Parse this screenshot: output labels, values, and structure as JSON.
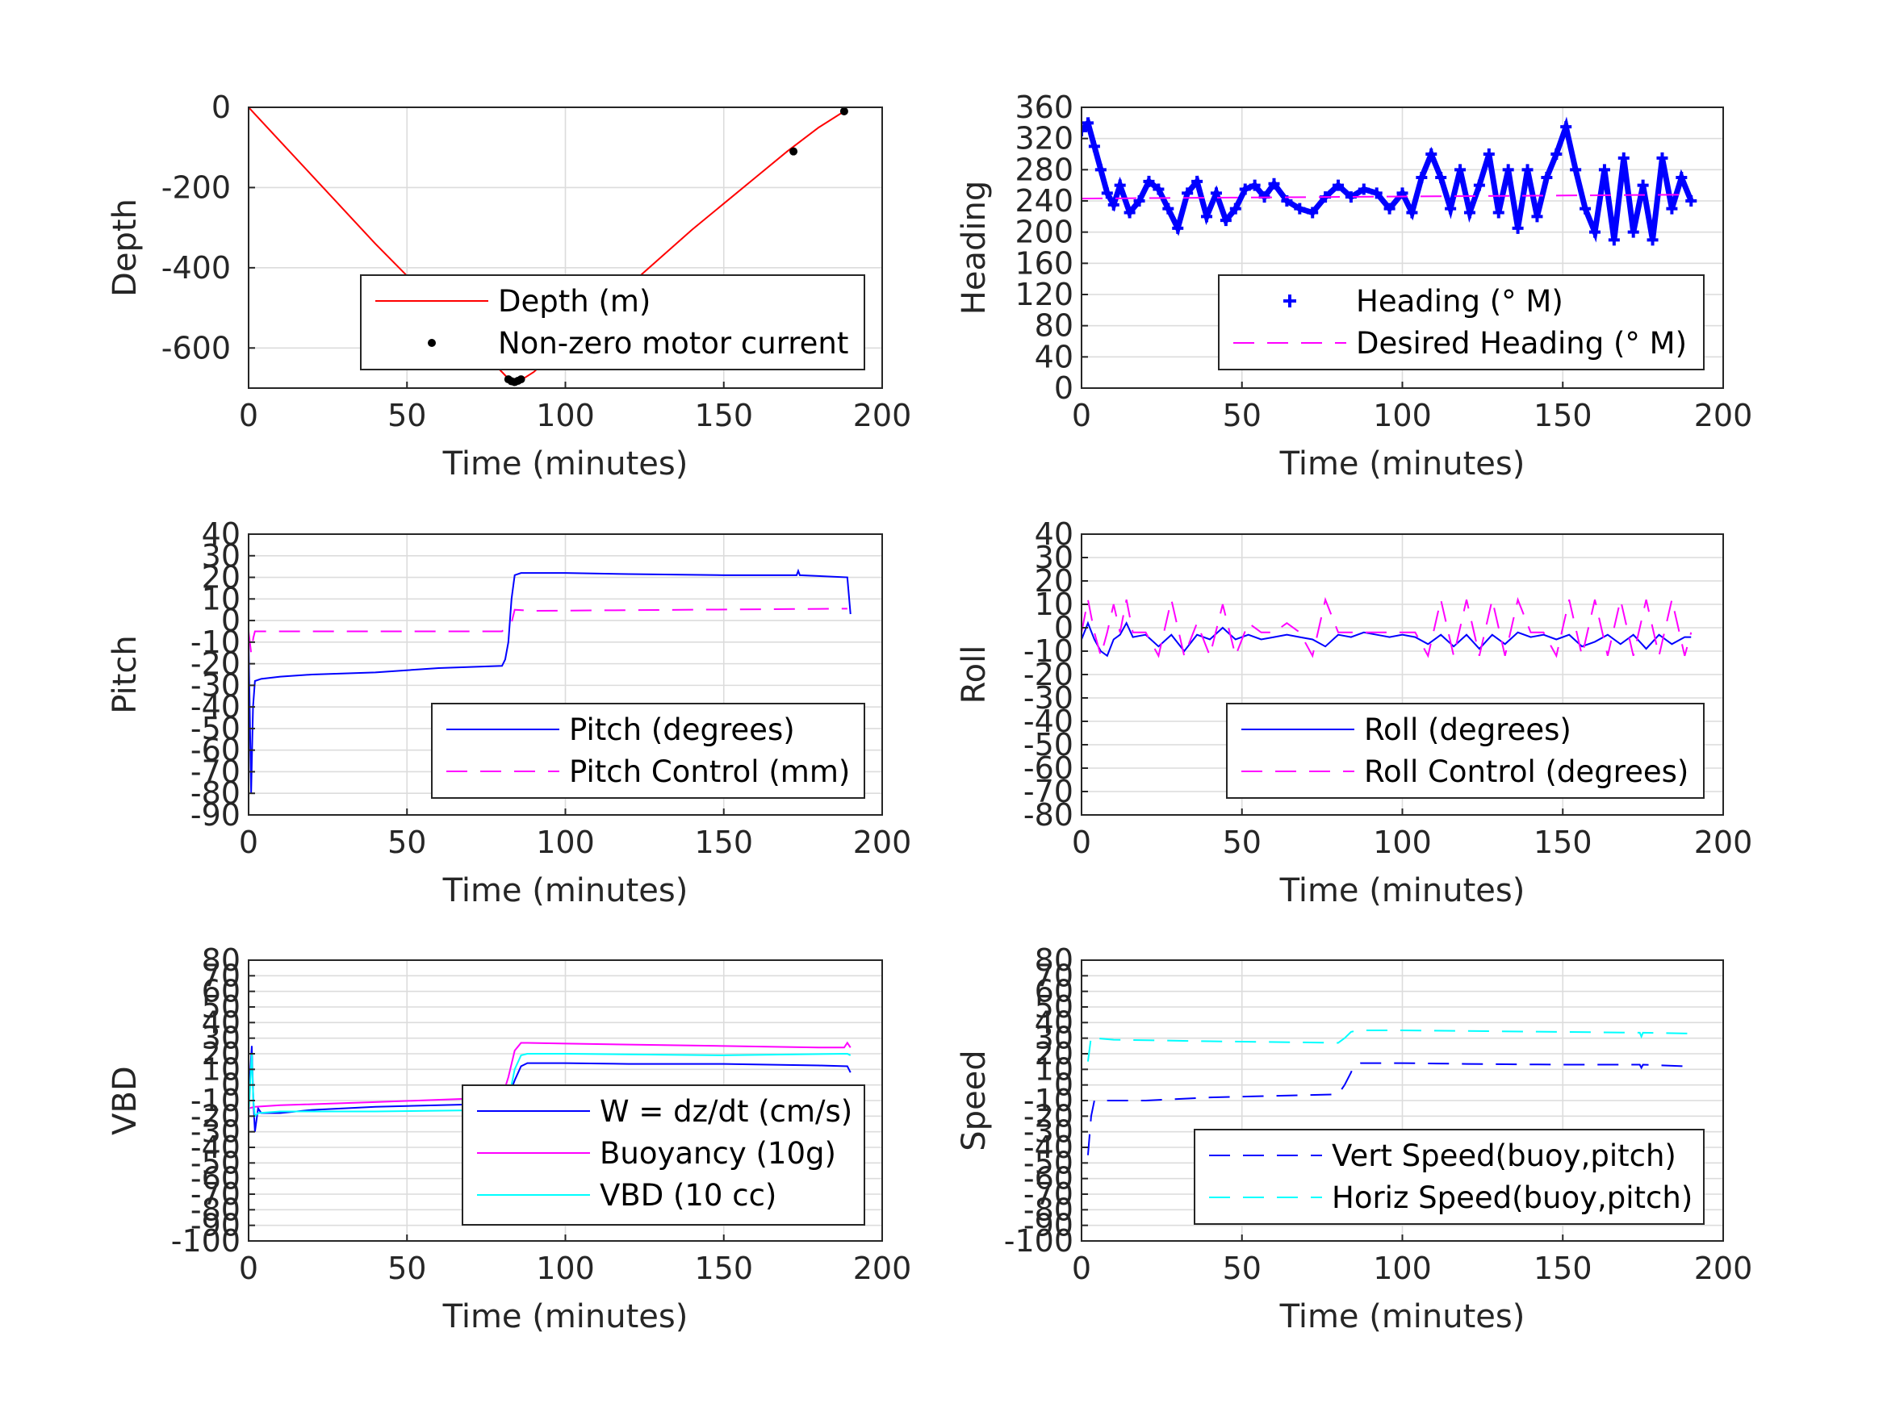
{
  "colors": {
    "red": "#ff0000",
    "blue": "#0000ff",
    "magenta": "#ff00ff",
    "cyan": "#00ffff",
    "black": "#000000"
  },
  "chart_data": [
    {
      "id": "depth",
      "type": "line",
      "xlabel": "Time (minutes)",
      "ylabel": "Depth",
      "xlim": [
        0,
        200
      ],
      "ylim": [
        -700,
        0
      ],
      "xticks": [
        0,
        50,
        100,
        150,
        200
      ],
      "yticks": [
        0,
        -200,
        -400,
        -600
      ],
      "grid": true,
      "legend_position": "lower-right",
      "series": [
        {
          "name": "Depth (m)",
          "style": "line",
          "color": "#ff0000",
          "x": [
            0,
            10,
            20,
            30,
            40,
            50,
            60,
            70,
            80,
            83,
            86,
            90,
            100,
            110,
            120,
            130,
            140,
            150,
            160,
            170,
            180,
            189
          ],
          "y": [
            0,
            -85,
            -170,
            -255,
            -340,
            -420,
            -500,
            -580,
            -660,
            -685,
            -680,
            -660,
            -590,
            -520,
            -445,
            -375,
            -305,
            -240,
            -175,
            -110,
            -50,
            -5
          ]
        },
        {
          "name": "Non-zero motor current",
          "style": "dots",
          "color": "#000000",
          "x": [
            82,
            83,
            84,
            85,
            86,
            172,
            188
          ],
          "y": [
            -678,
            -683,
            -685,
            -682,
            -678,
            -110,
            -10
          ]
        }
      ]
    },
    {
      "id": "heading",
      "type": "line",
      "xlabel": "Time (minutes)",
      "ylabel": "Heading",
      "xlim": [
        0,
        200
      ],
      "ylim": [
        0,
        360
      ],
      "xticks": [
        0,
        50,
        100,
        150,
        200
      ],
      "yticks": [
        0,
        40,
        80,
        120,
        160,
        200,
        240,
        280,
        320,
        360
      ],
      "grid": true,
      "legend_position": "lower-right",
      "series": [
        {
          "name": "Heading (° M)",
          "style": "markers",
          "color": "#0000ff",
          "x": [
            0,
            2,
            4,
            6,
            8,
            10,
            12,
            15,
            18,
            21,
            24,
            27,
            30,
            33,
            36,
            39,
            42,
            45,
            48,
            51,
            54,
            57,
            60,
            64,
            68,
            72,
            76,
            80,
            84,
            88,
            92,
            96,
            100,
            103,
            106,
            109,
            112,
            115,
            118,
            121,
            124,
            127,
            130,
            133,
            136,
            139,
            142,
            145,
            148,
            151,
            154,
            157,
            160,
            163,
            166,
            169,
            172,
            175,
            178,
            181,
            184,
            187,
            190
          ],
          "y": [
            330,
            340,
            310,
            280,
            250,
            235,
            260,
            225,
            240,
            265,
            255,
            230,
            205,
            250,
            265,
            220,
            250,
            215,
            230,
            255,
            260,
            245,
            262,
            240,
            230,
            225,
            245,
            260,
            245,
            255,
            250,
            230,
            250,
            225,
            270,
            300,
            270,
            230,
            280,
            225,
            260,
            300,
            225,
            280,
            205,
            280,
            220,
            270,
            300,
            335,
            280,
            230,
            200,
            280,
            190,
            295,
            200,
            260,
            190,
            295,
            230,
            270,
            240
          ]
        },
        {
          "name": "Desired Heading (° M)",
          "style": "dashed",
          "color": "#ff00ff",
          "x": [
            0,
            190
          ],
          "y": [
            243,
            248
          ]
        }
      ]
    },
    {
      "id": "pitch",
      "type": "line",
      "xlabel": "Time (minutes)",
      "ylabel": "Pitch",
      "xlim": [
        0,
        200
      ],
      "ylim": [
        -90,
        40
      ],
      "xticks": [
        0,
        50,
        100,
        150,
        200
      ],
      "yticks": [
        40,
        30,
        20,
        10,
        0,
        -10,
        -20,
        -30,
        -40,
        -50,
        -60,
        -70,
        -80,
        -90
      ],
      "grid": true,
      "legend_position": "lower-right",
      "series": [
        {
          "name": "Pitch (degrees)",
          "style": "line",
          "color": "#0000ff",
          "x": [
            0,
            0.8,
            1.4,
            2,
            4,
            10,
            20,
            40,
            60,
            80,
            81,
            82,
            83,
            84,
            86,
            100,
            120,
            150,
            173,
            173.5,
            174,
            189,
            190
          ],
          "y": [
            -10,
            -80,
            -40,
            -28,
            -27,
            -26,
            -25,
            -24,
            -22,
            -21,
            -18,
            -10,
            10,
            21,
            22,
            22,
            21.5,
            21,
            21,
            23,
            21,
            20,
            3
          ]
        },
        {
          "name": "Pitch Control (mm)",
          "style": "dashed",
          "color": "#ff00ff",
          "x": [
            0,
            0.8,
            1.5,
            2,
            80,
            82,
            83,
            84,
            90,
            189
          ],
          "y": [
            -5,
            -15,
            -8,
            -5,
            -5,
            -2,
            -1,
            5,
            4.5,
            5.5
          ]
        }
      ]
    },
    {
      "id": "roll",
      "type": "line",
      "xlabel": "Time (minutes)",
      "ylabel": "Roll",
      "xlim": [
        0,
        200
      ],
      "ylim": [
        -80,
        40
      ],
      "xticks": [
        0,
        50,
        100,
        150,
        200
      ],
      "yticks": [
        40,
        30,
        20,
        10,
        0,
        -10,
        -20,
        -30,
        -40,
        -50,
        -60,
        -70,
        -80
      ],
      "grid": true,
      "legend_position": "lower-right",
      "series": [
        {
          "name": "Roll (degrees)",
          "style": "line",
          "color": "#0000ff",
          "x": [
            0,
            2,
            4,
            6,
            8,
            10,
            12,
            14,
            16,
            20,
            24,
            28,
            32,
            36,
            40,
            44,
            48,
            52,
            56,
            60,
            64,
            68,
            72,
            76,
            80,
            84,
            88,
            92,
            96,
            100,
            104,
            108,
            112,
            116,
            120,
            124,
            128,
            132,
            136,
            140,
            144,
            148,
            152,
            156,
            160,
            164,
            168,
            172,
            176,
            180,
            184,
            188,
            190
          ],
          "y": [
            -5,
            2,
            -5,
            -10,
            -12,
            -5,
            -3,
            2,
            -4,
            -3,
            -8,
            -3,
            -10,
            -3,
            -5,
            0,
            -5,
            -3,
            -5,
            -4,
            -3,
            -4,
            -5,
            -8,
            -3,
            -4,
            -2,
            -3,
            -4,
            -3,
            -4,
            -7,
            -3,
            -8,
            -3,
            -9,
            -3,
            -7,
            -2,
            -4,
            -3,
            -5,
            -3,
            -8,
            -6,
            -3,
            -7,
            -3,
            -9,
            -3,
            -7,
            -4,
            -4
          ]
        },
        {
          "name": "Roll Control (degrees)",
          "style": "dashed",
          "color": "#ff00ff",
          "x": [
            0,
            2,
            4,
            6,
            8,
            10,
            12,
            14,
            16,
            20,
            24,
            28,
            32,
            36,
            40,
            44,
            48,
            52,
            56,
            60,
            64,
            68,
            72,
            76,
            80,
            84,
            88,
            92,
            96,
            100,
            104,
            108,
            112,
            116,
            120,
            124,
            128,
            132,
            136,
            140,
            144,
            148,
            152,
            156,
            160,
            164,
            168,
            172,
            176,
            180,
            184,
            188,
            190
          ],
          "y": [
            -2,
            12,
            -2,
            -12,
            -2,
            10,
            -2,
            12,
            -2,
            -2,
            -12,
            12,
            -12,
            2,
            -12,
            10,
            -12,
            2,
            -2,
            -2,
            2,
            -2,
            -12,
            12,
            -2,
            -2,
            -2,
            -2,
            -2,
            -2,
            -2,
            -12,
            12,
            -12,
            12,
            -12,
            12,
            -12,
            12,
            -2,
            -2,
            -12,
            12,
            -12,
            12,
            -12,
            12,
            -12,
            12,
            -12,
            12,
            -12,
            -2
          ]
        }
      ]
    },
    {
      "id": "vbd",
      "type": "line",
      "xlabel": "Time (minutes)",
      "ylabel": "VBD",
      "xlim": [
        0,
        200
      ],
      "ylim": [
        -100,
        80
      ],
      "xticks": [
        0,
        50,
        100,
        150,
        200
      ],
      "yticks": [
        80,
        70,
        60,
        50,
        40,
        30,
        20,
        10,
        0,
        -10,
        -20,
        -30,
        -40,
        -50,
        -60,
        -70,
        -80,
        -90,
        -100
      ],
      "grid": true,
      "legend_position": "lower-right",
      "series": [
        {
          "name": "W = dz/dt (cm/s)",
          "style": "line",
          "color": "#0000ff",
          "x": [
            0,
            1,
            1.5,
            2,
            3,
            4,
            10,
            20,
            40,
            60,
            80,
            82,
            84,
            86,
            88,
            100,
            120,
            150,
            180,
            189,
            190
          ],
          "y": [
            -10,
            25,
            -10,
            -30,
            -15,
            -18,
            -18,
            -16,
            -14,
            -13,
            -12,
            -8,
            3,
            12,
            14,
            14,
            13.5,
            13.5,
            12.5,
            12,
            8
          ]
        },
        {
          "name": "Buoyancy (10g)",
          "style": "line",
          "color": "#ff00ff",
          "x": [
            0,
            2,
            10,
            40,
            80,
            82,
            84,
            86,
            88,
            100,
            150,
            180,
            188,
            189,
            190
          ],
          "y": [
            -15,
            -14,
            -13,
            -11,
            -8,
            5,
            22,
            27,
            27,
            26.5,
            25,
            24,
            24,
            27,
            24
          ]
        },
        {
          "name": "VBD (10 cc)",
          "style": "line",
          "color": "#00ffff",
          "x": [
            0,
            1,
            1.5,
            2,
            3,
            10,
            40,
            80,
            82,
            84,
            86,
            88,
            100,
            150,
            189,
            190
          ],
          "y": [
            -20,
            20,
            -10,
            -20,
            -18,
            -17,
            -17,
            -16,
            -10,
            10,
            19,
            20,
            20,
            19,
            20,
            19
          ]
        }
      ]
    },
    {
      "id": "speed",
      "type": "line",
      "xlabel": "Time (minutes)",
      "ylabel": "Speed",
      "xlim": [
        0,
        200
      ],
      "ylim": [
        -100,
        80
      ],
      "xticks": [
        0,
        50,
        100,
        150,
        200
      ],
      "yticks": [
        80,
        70,
        60,
        50,
        40,
        30,
        20,
        10,
        0,
        -10,
        -20,
        -30,
        -40,
        -50,
        -60,
        -70,
        -80,
        -90,
        -100
      ],
      "grid": true,
      "legend_position": "lower-right",
      "series": [
        {
          "name": "Vert Speed(buoy,pitch)",
          "style": "dashed",
          "color": "#0000ff",
          "x": [
            2,
            3,
            4,
            20,
            40,
            60,
            80,
            82,
            84,
            85,
            87,
            100,
            120,
            150,
            174,
            174.5,
            175,
            188
          ],
          "y": [
            -45,
            -20,
            -10,
            -10,
            -8,
            -7,
            -6,
            0,
            8,
            13,
            14,
            14,
            13.5,
            13,
            13,
            11,
            13,
            12
          ]
        },
        {
          "name": "Horiz Speed(buoy,pitch)",
          "style": "dashed",
          "color": "#00ffff",
          "x": [
            2,
            3,
            4,
            10,
            40,
            80,
            82,
            84,
            86,
            88,
            100,
            150,
            174,
            174.5,
            175,
            189,
            190
          ],
          "y": [
            15,
            31,
            30,
            29,
            28,
            27,
            30,
            34,
            35,
            35,
            35,
            34,
            33.5,
            31,
            33.5,
            33,
            34
          ]
        }
      ]
    }
  ]
}
